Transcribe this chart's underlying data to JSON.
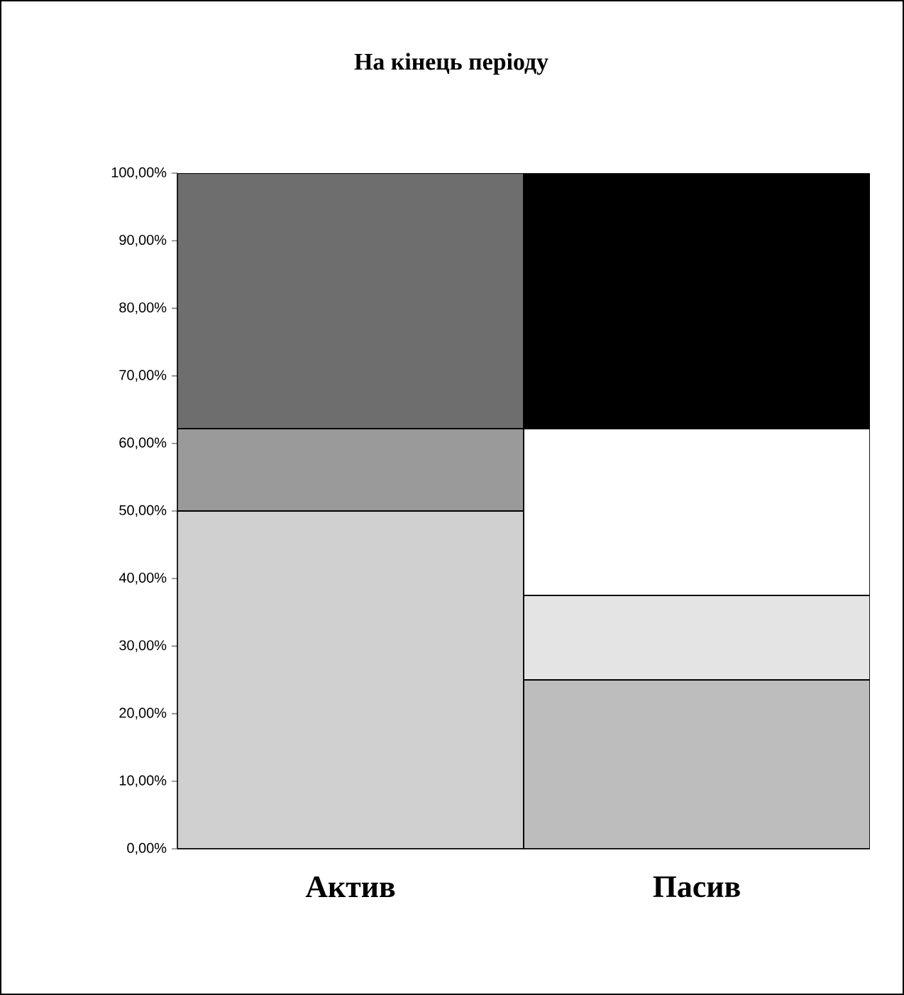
{
  "chart_data": {
    "type": "bar",
    "stacked": true,
    "title": "На кінець періоду",
    "categories": [
      "Актив",
      "Пасив"
    ],
    "series": [
      {
        "colors": [
          "#d0d0d0",
          "#bdbdbd"
        ],
        "values": [
          50,
          25
        ]
      },
      {
        "colors": [
          "#9a9a9a",
          "#e4e4e4"
        ],
        "values": [
          12.2,
          12.5
        ]
      },
      {
        "colors": [
          "#6e6e6e",
          "#ffffff"
        ],
        "values": [
          37.8,
          24.7
        ]
      },
      {
        "colors": [
          "#000000",
          "#000000"
        ],
        "values": [
          null,
          37.8
        ]
      }
    ],
    "ylim": [
      0,
      100
    ],
    "yticks": [
      {
        "value": 0,
        "label": "0,00%"
      },
      {
        "value": 10,
        "label": "10,00%"
      },
      {
        "value": 20,
        "label": "20,00%"
      },
      {
        "value": 30,
        "label": "30,00%"
      },
      {
        "value": 40,
        "label": "40,00%"
      },
      {
        "value": 50,
        "label": "50,00%"
      },
      {
        "value": 60,
        "label": "60,00%"
      },
      {
        "value": 70,
        "label": "70,00%"
      },
      {
        "value": 80,
        "label": "80,00%"
      },
      {
        "value": 90,
        "label": "90,00%"
      },
      {
        "value": 100,
        "label": "100,00%"
      }
    ],
    "grid": false
  }
}
